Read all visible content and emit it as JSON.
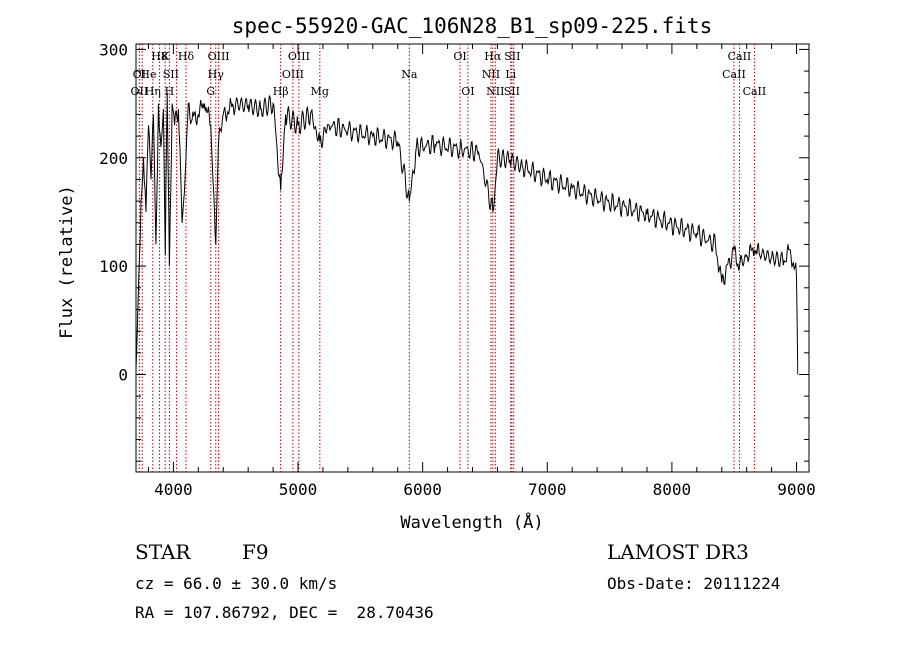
{
  "chart_data": {
    "type": "line",
    "title": "spec-55920-GAC_106N28_B1_sp09-225.fits",
    "xlabel": "Wavelength (Å)",
    "ylabel": "Flux (relative)",
    "xlim": [
      3700,
      9100
    ],
    "ylim": [
      -90,
      305
    ],
    "x_ticks": [
      4000,
      5000,
      6000,
      7000,
      8000,
      9000
    ],
    "y_ticks": [
      0,
      100,
      200,
      300
    ],
    "series": [
      {
        "name": "flux",
        "x": [
          3700,
          3720,
          3740,
          3760,
          3780,
          3800,
          3820,
          3840,
          3860,
          3880,
          3900,
          3920,
          3935,
          3950,
          3968,
          3990,
          4010,
          4040,
          4070,
          4101,
          4120,
          4150,
          4200,
          4250,
          4300,
          4330,
          4340,
          4360,
          4400,
          4450,
          4500,
          4600,
          4700,
          4800,
          4861,
          4900,
          5000,
          5100,
          5175,
          5250,
          5400,
          5600,
          5800,
          5893,
          5950,
          6100,
          6300,
          6450,
          6563,
          6600,
          6700,
          6800,
          7000,
          7200,
          7400,
          7600,
          7800,
          8000,
          8200,
          8350,
          8400,
          8498,
          8542,
          8600,
          8662,
          8700,
          8800,
          8900,
          8950,
          9000,
          9010
        ],
        "values": [
          5,
          80,
          160,
          200,
          150,
          230,
          180,
          240,
          120,
          250,
          210,
          245,
          110,
          260,
          100,
          250,
          230,
          245,
          140,
          200,
          250,
          235,
          240,
          250,
          230,
          150,
          120,
          210,
          240,
          245,
          250,
          248,
          245,
          250,
          170,
          240,
          230,
          240,
          215,
          230,
          225,
          220,
          215,
          160,
          210,
          212,
          208,
          205,
          150,
          200,
          198,
          192,
          180,
          172,
          162,
          155,
          148,
          138,
          130,
          120,
          85,
          115,
          100,
          110,
          115,
          112,
          108,
          105,
          115,
          90,
          0
        ]
      }
    ],
    "line_labels": {
      "top": [
        "H8",
        "K",
        "Hδ",
        "OIII",
        "OIII",
        "OI",
        "Hα",
        "SII",
        "CaII"
      ],
      "middle": [
        "OI",
        "He",
        "SII",
        "Hγ",
        "OIII",
        "Na",
        "NII",
        "Li",
        "CaII"
      ],
      "bottom": [
        "OII",
        "Hη",
        "H",
        "G",
        "Hβ",
        "Mg",
        "OI",
        "NII",
        "SII",
        "CaII"
      ]
    }
  },
  "info": {
    "object_type": "STAR",
    "subclass": "F9",
    "redshift": "cz = 66.0 ± 30.0 km/s",
    "coords": "RA = 107.86792, DEC =  28.70436",
    "survey": "LAMOST DR3",
    "obs_date": "Obs-Date: 20111224"
  }
}
